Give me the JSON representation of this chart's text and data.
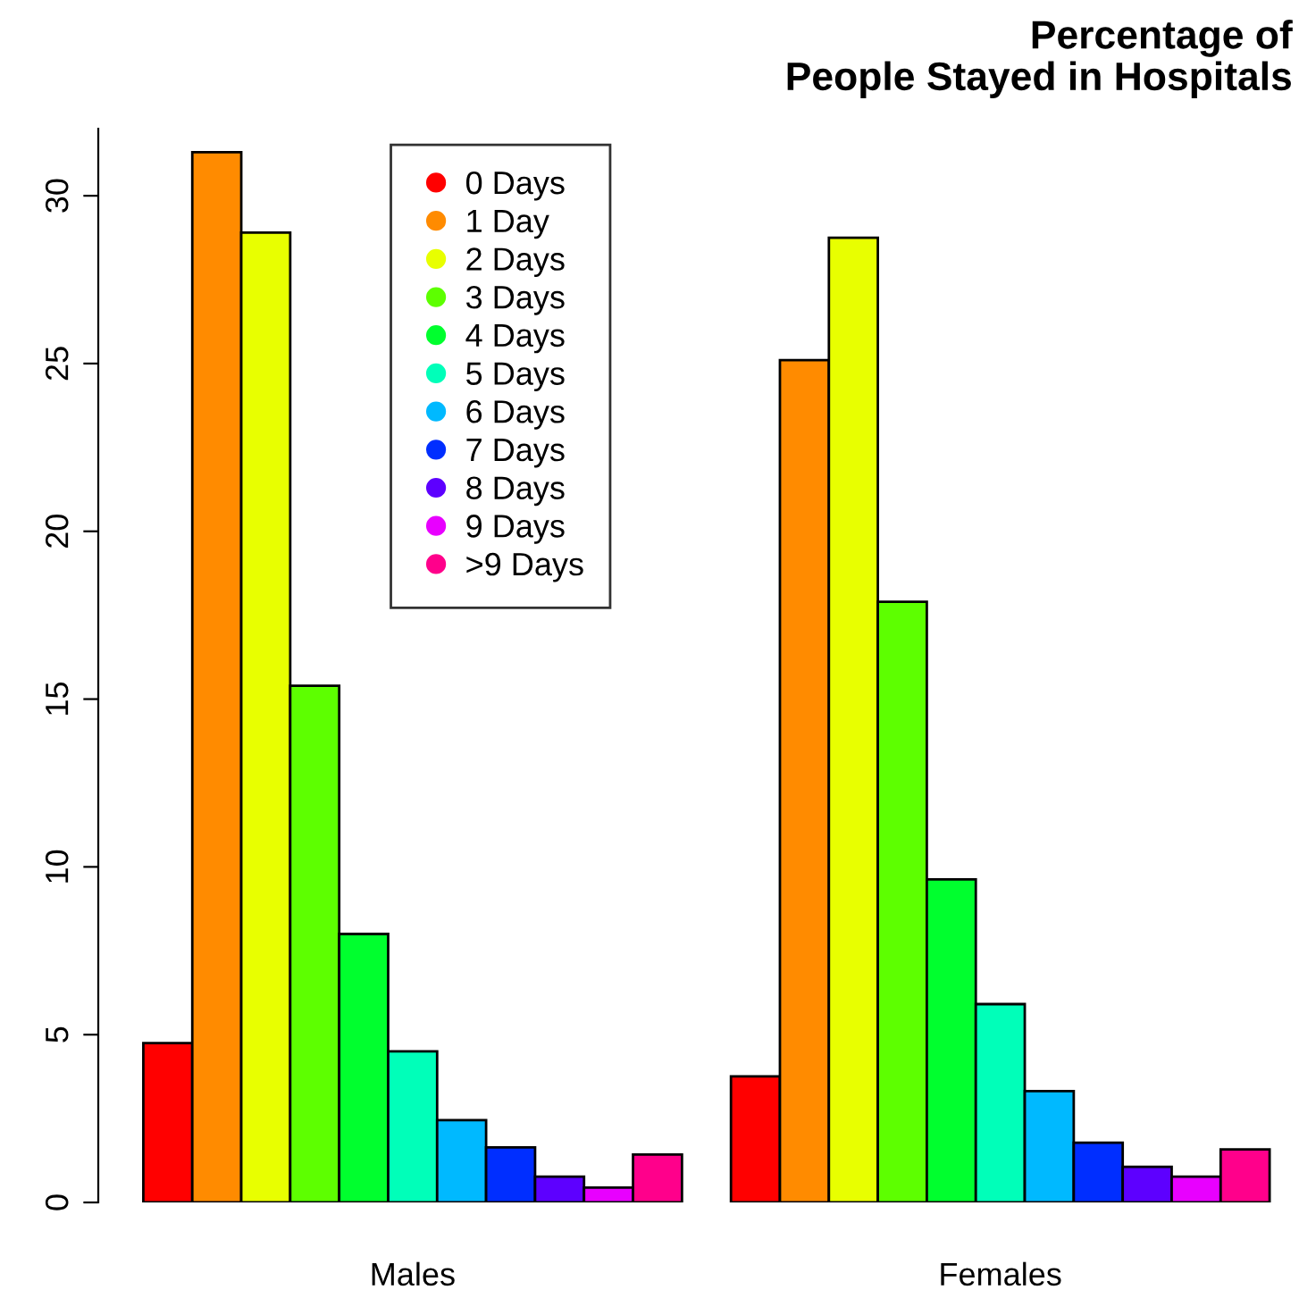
{
  "chart_data": {
    "type": "bar",
    "title": "Percentage of\nPeople Stayed in Hospitals",
    "categories": [
      "Males",
      "Females"
    ],
    "series": [
      {
        "name": "0 Days",
        "color": "#ff0000",
        "values": [
          4.75,
          3.76
        ]
      },
      {
        "name": "1 Day",
        "color": "#ff8b00",
        "values": [
          31.3,
          25.1
        ]
      },
      {
        "name": "2 Days",
        "color": "#e8ff00",
        "values": [
          28.9,
          28.75
        ]
      },
      {
        "name": "3 Days",
        "color": "#5dff00",
        "values": [
          15.4,
          17.9
        ]
      },
      {
        "name": "4 Days",
        "color": "#00ff2e",
        "values": [
          8.0,
          9.63
        ]
      },
      {
        "name": "5 Days",
        "color": "#00ffb9",
        "values": [
          4.5,
          5.91
        ]
      },
      {
        "name": "6 Days",
        "color": "#00b9ff",
        "values": [
          2.45,
          3.32
        ]
      },
      {
        "name": "7 Days",
        "color": "#002eff",
        "values": [
          1.64,
          1.78
        ]
      },
      {
        "name": "8 Days",
        "color": "#5d00ff",
        "values": [
          0.77,
          1.06
        ]
      },
      {
        "name": "9 Days",
        "color": "#e800ff",
        "values": [
          0.44,
          0.77
        ]
      },
      {
        "name": ">9 Days",
        "color": "#ff008b",
        "values": [
          1.43,
          1.58
        ]
      }
    ],
    "ylim": [
      0,
      32
    ],
    "yticks": [
      0,
      5,
      10,
      15,
      20,
      25,
      30
    ],
    "legend": "top",
    "marker": "circle",
    "grid": false
  }
}
